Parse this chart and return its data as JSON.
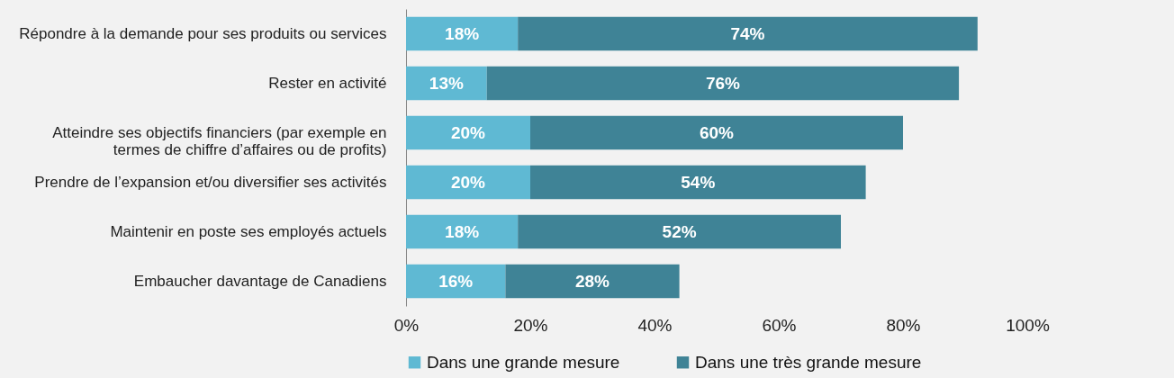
{
  "chart_data": {
    "type": "bar",
    "orientation": "horizontal",
    "stacked": true,
    "categories": [
      "Répondre à la demande pour ses produits ou services",
      "Rester en activité",
      "Atteindre ses objectifs financiers (par exemple en termes de chiffre d’affaires ou de profits)",
      "Prendre de l’expansion et/ou diversifier ses activités",
      "Maintenir en poste ses employés actuels",
      "Embaucher davantage de Canadiens"
    ],
    "series": [
      {
        "name": "Dans une grande mesure",
        "color": "#5fb9d3",
        "values": [
          18,
          13,
          20,
          20,
          18,
          16
        ],
        "value_labels": [
          "18%",
          "13%",
          "20%",
          "20%",
          "18%",
          "16%"
        ]
      },
      {
        "name": "Dans une très grande mesure",
        "color": "#3f8396",
        "values": [
          74,
          76,
          60,
          54,
          52,
          28
        ],
        "value_labels": [
          "74%",
          "76%",
          "60%",
          "54%",
          "52%",
          "28%"
        ]
      }
    ],
    "xlim": [
      0,
      100
    ],
    "xticks": [
      {
        "value": 0,
        "label": "0%"
      },
      {
        "value": 20,
        "label": "20%"
      },
      {
        "value": 40,
        "label": "40%"
      },
      {
        "value": 60,
        "label": "60%"
      },
      {
        "value": 80,
        "label": "80%"
      },
      {
        "value": 100,
        "label": "100%"
      }
    ],
    "grid": false,
    "legend": "bottom"
  }
}
